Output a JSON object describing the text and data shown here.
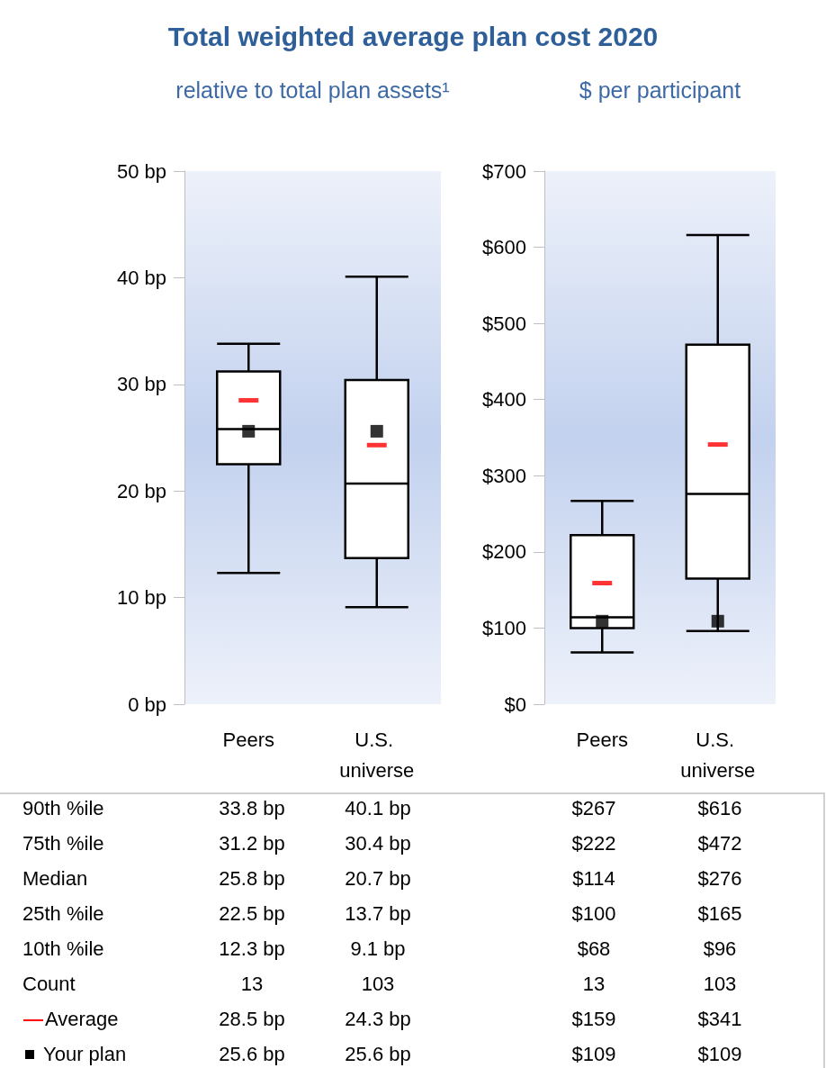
{
  "chart_data": [
    {
      "type": "box",
      "title": "Total weighted average plan cost 2020",
      "subtitle": "relative to total plan assets¹",
      "categories": [
        "Peers",
        "U.S. universe"
      ],
      "boxes": [
        {
          "low": 12.3,
          "q1": 22.5,
          "median": 25.8,
          "q3": 31.2,
          "high": 33.8,
          "mean": 28.5
        },
        {
          "low": 9.1,
          "q1": 13.7,
          "median": 20.7,
          "q3": 30.4,
          "high": 40.1,
          "mean": 24.3
        }
      ],
      "series": [
        {
          "type": "scatter",
          "name": "Your plan",
          "color": "#000000",
          "marker": "square",
          "values": [
            25.6,
            25.6
          ],
          "value_labels": [
            "25.6 bp",
            "25.6 bp"
          ]
        }
      ],
      "ylim": [
        0,
        50
      ],
      "yticks": [
        {
          "value": 0,
          "label": "0 bp"
        },
        {
          "value": 10,
          "label": "10 bp"
        },
        {
          "value": 20,
          "label": "20 bp"
        },
        {
          "value": 30,
          "label": "30 bp"
        },
        {
          "value": 40,
          "label": "40 bp"
        },
        {
          "value": 50,
          "label": "50 bp"
        }
      ],
      "grid": false,
      "legend": "bottom left",
      "annotations": [
        "90th %ile",
        "33.8 bp",
        "40.1 bp",
        "75th %ile",
        "31.2 bp",
        "30.4 bp",
        "Median",
        "25.8 bp",
        "20.7 bp",
        "25th %ile",
        "22.5 bp",
        "13.7 bp",
        "10th %ile",
        "12.3 bp",
        "9.1 bp",
        "Count",
        "13",
        "103",
        "Average",
        "28.5 bp",
        "24.3 bp"
      ]
    },
    {
      "type": "box",
      "subtitle": "$ per participant",
      "categories": [
        "Peers",
        "U.S. universe"
      ],
      "boxes": [
        {
          "low": 68,
          "q1": 100,
          "median": 114,
          "q3": 222,
          "high": 267,
          "mean": 159
        },
        {
          "low": 96,
          "q1": 165,
          "median": 276,
          "q3": 472,
          "high": 616,
          "mean": 341
        }
      ],
      "series": [
        {
          "type": "scatter",
          "color": "#000000",
          "marker": "square",
          "values": [
            109,
            109
          ],
          "value_labels": [
            "$109",
            "$109"
          ]
        }
      ],
      "ylim": [
        0,
        700
      ],
      "yticks": [
        {
          "value": 0,
          "label": "$0"
        },
        {
          "value": 100,
          "label": "$100"
        },
        {
          "value": 200,
          "label": "$200"
        },
        {
          "value": 300,
          "label": "$300"
        },
        {
          "value": 400,
          "label": "$400"
        },
        {
          "value": 500,
          "label": "$500"
        },
        {
          "value": 600,
          "label": "$600"
        },
        {
          "value": 700,
          "label": "$700"
        }
      ],
      "grid": false,
      "annotations": [
        "$267",
        "$616",
        "$222",
        "$472",
        "$114",
        "$276",
        "$100",
        "$165",
        "$68",
        "$96",
        "13",
        "103",
        "$159",
        "$341"
      ]
    }
  ]
}
